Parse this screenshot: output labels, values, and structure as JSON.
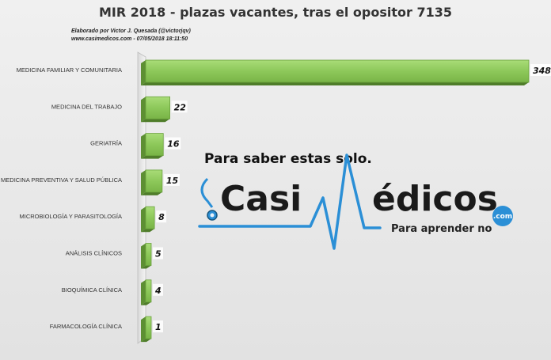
{
  "chart_data": {
    "type": "bar",
    "orientation": "horizontal",
    "title": "MIR 2018 - plazas vacantes, tras el opositor 7135",
    "subtitle_lines": [
      "Elaborado por Victor J. Quesada (@victorjqv)",
      "www.casimedicos.com - 07/05/2018 18:11:50"
    ],
    "categories": [
      "MEDICINA FAMILIAR Y COMUNITARIA",
      "MEDICINA DEL TRABAJO",
      "GERIATRÍA",
      "MEDICINA PREVENTIVA Y SALUD PÚBLICA",
      "MICROBIOLOGÍA Y PARASITOLOGÍA",
      "ANÁLISIS CLÍNICOS",
      "BIOQUÍMICA CLÍNICA",
      "FARMACOLOGÍA CLÍNICA"
    ],
    "values": [
      348,
      22,
      16,
      15,
      8,
      5,
      4,
      1
    ],
    "xlim": [
      0,
      348
    ],
    "grid": false,
    "legend": "none",
    "bar_color": "#8dc85a"
  },
  "watermark": {
    "tagline_top": "Para saber estas solo.",
    "brand_casi": "Casi",
    "brand_rest": "édicos",
    "brand_com": ".com",
    "tagline_bottom": "Para aprender no",
    "colors": {
      "primary": "#2b8fd6",
      "text": "#1a1a1a"
    }
  }
}
